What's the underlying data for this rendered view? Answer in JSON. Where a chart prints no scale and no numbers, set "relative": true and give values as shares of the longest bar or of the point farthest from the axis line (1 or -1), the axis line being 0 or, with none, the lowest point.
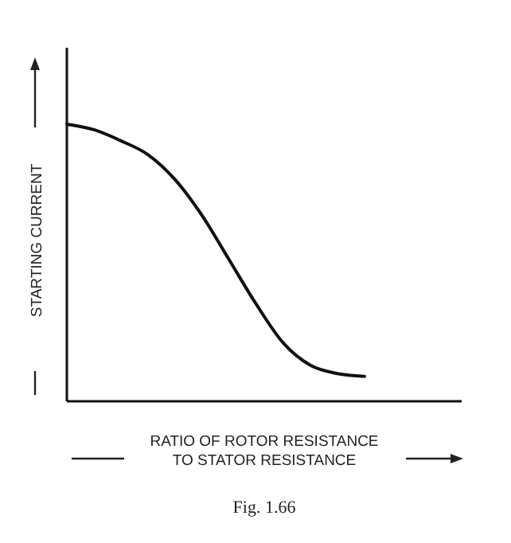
{
  "chart_data": {
    "type": "line",
    "relative": true,
    "xlabel": "RATIO OF ROTOR RESISTANCE\nTO STATOR RESISTANCE",
    "ylabel": "STARTING CURRENT",
    "categories": [
      null,
      null,
      null,
      null,
      null,
      null,
      null,
      null,
      null,
      null,
      null,
      null,
      null,
      null,
      null
    ],
    "values": [
      1,
      0.98,
      0.94,
      0.89,
      0.8,
      0.67,
      0.51,
      0.35,
      0.21,
      0.13,
      0.1,
      0.09,
      null,
      null,
      null
    ],
    "color": "#111111",
    "annotations": [
      "Fig. 1.66"
    ]
  }
}
